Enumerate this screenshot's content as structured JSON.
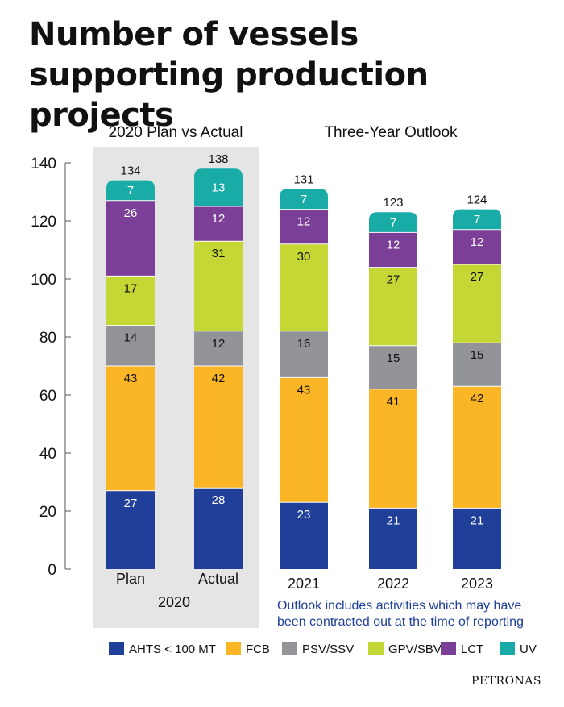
{
  "title": "Number of vessels supporting production projects",
  "source": "PETRONAS",
  "chart_data": {
    "type": "bar",
    "stacked": true,
    "groups": [
      {
        "label": "2020 Plan vs Actual",
        "group_axis_label": "2020",
        "categories": [
          "Plan",
          "Actual"
        ],
        "shaded": true,
        "shade_color": "#e5e5e5"
      },
      {
        "label": "Three-Year Outlook",
        "categories": [
          "2021",
          "2022",
          "2023"
        ]
      }
    ],
    "categories": [
      "Plan",
      "Actual",
      "2021",
      "2022",
      "2023"
    ],
    "series": [
      {
        "name": "AHTS < 100 MT",
        "color": "#1f3f98",
        "values": [
          27,
          28,
          23,
          21,
          21
        ]
      },
      {
        "name": "FCB",
        "color": "#fbb626",
        "values": [
          43,
          42,
          43,
          41,
          42
        ]
      },
      {
        "name": "PSV/SSV",
        "color": "#929497",
        "values": [
          14,
          12,
          16,
          15,
          15
        ]
      },
      {
        "name": "GPV/SBV",
        "color": "#c5d735",
        "values": [
          17,
          31,
          30,
          27,
          27
        ]
      },
      {
        "name": "LCT",
        "color": "#7b3f98",
        "values": [
          26,
          12,
          12,
          12,
          12
        ]
      },
      {
        "name": "UV",
        "color": "#19aca6",
        "values": [
          7,
          13,
          7,
          7,
          7
        ]
      }
    ],
    "totals": [
      134,
      138,
      131,
      123,
      124
    ],
    "ylim": [
      0,
      140
    ],
    "yticks": [
      0,
      20,
      40,
      60,
      80,
      100,
      120,
      140
    ],
    "grid": false,
    "legend": "bottom",
    "annotation": "Outlook includes activities which may have been contracted out at the time of reporting",
    "annotation_color": "#1f3f98"
  }
}
